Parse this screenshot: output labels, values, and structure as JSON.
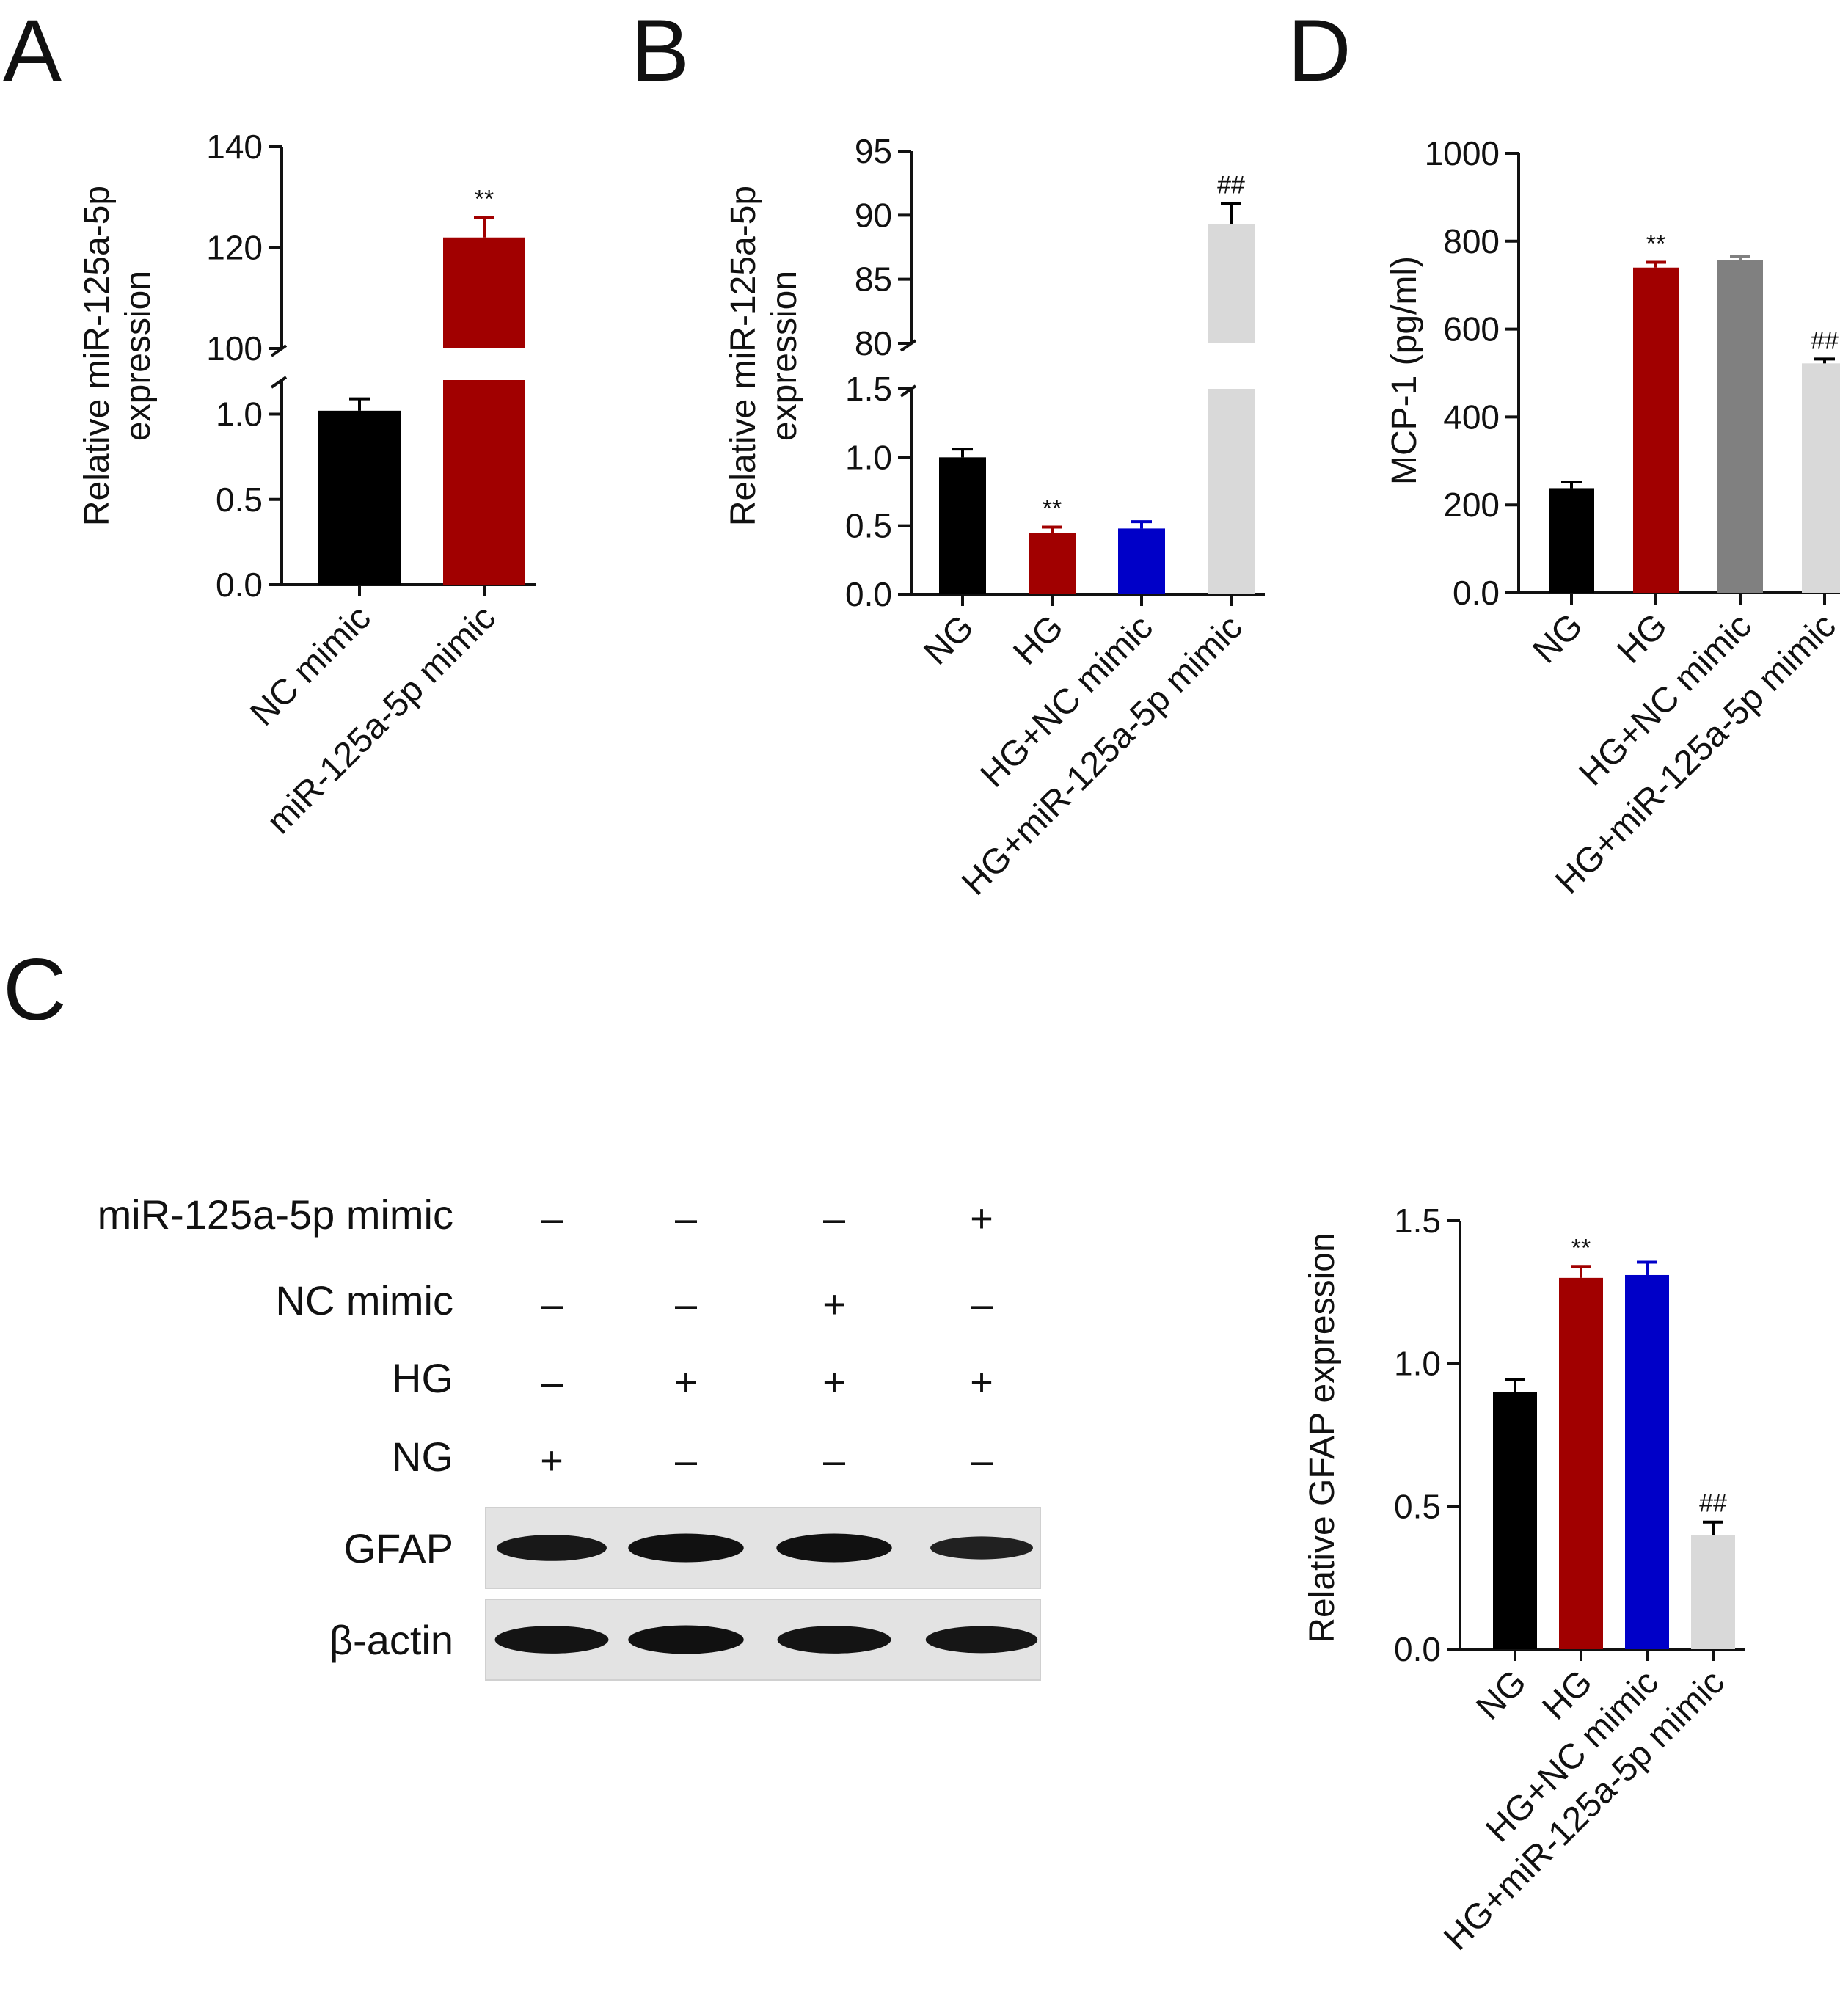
{
  "panels": {
    "A": "A",
    "B": "B",
    "C": "C",
    "D": "D"
  },
  "chart_data": [
    {
      "id": "A",
      "type": "bar",
      "categories": [
        "NC mimic",
        "miR-125a-5p mimic"
      ],
      "values": [
        1.02,
        122
      ],
      "errors": [
        0.07,
        4
      ],
      "colors": [
        "#000000",
        "#a10000"
      ],
      "ylabel_lines": [
        "Relative miR-125a-5p",
        "expression"
      ],
      "axis_break": {
        "lower": [
          0,
          1.2
        ],
        "upper": [
          100,
          140
        ]
      },
      "lower_ticks": [
        0.0,
        0.5,
        1.0
      ],
      "upper_ticks": [
        100,
        120,
        140
      ],
      "significance": [
        "",
        "**"
      ]
    },
    {
      "id": "B",
      "type": "bar",
      "categories": [
        "NG",
        "HG",
        "HG+NC mimic",
        "HG+miR-125a-5p mimic"
      ],
      "values": [
        1.0,
        0.45,
        0.48,
        89.3
      ],
      "errors": [
        0.06,
        0.04,
        0.05,
        1.6
      ],
      "colors": [
        "#000000",
        "#a10000",
        "#0000c8",
        "#d9d9d9"
      ],
      "ylabel_lines": [
        "Relative miR-125a-5p",
        "expression"
      ],
      "axis_break": {
        "lower": [
          0,
          1.5
        ],
        "upper": [
          80,
          95
        ]
      },
      "lower_ticks": [
        0.0,
        0.5,
        1.0,
        1.5
      ],
      "upper_ticks": [
        80,
        85,
        90,
        95
      ],
      "significance": [
        "",
        "**",
        "",
        "##"
      ]
    },
    {
      "id": "D",
      "type": "bar",
      "categories": [
        "NG",
        "HG",
        "HG+NC mimic",
        "HG+miR-125a-5p mimic"
      ],
      "values": [
        238,
        740,
        757,
        522
      ],
      "errors": [
        14,
        12,
        8,
        10
      ],
      "colors": [
        "#000000",
        "#a10000",
        "#808080",
        "#d9d9d9"
      ],
      "ylabel": "MCP-1  (pg/ml)",
      "ylim": [
        0,
        1000
      ],
      "ticks": [
        0,
        200,
        400,
        600,
        800,
        1000
      ],
      "significance": [
        "",
        "**",
        "",
        "##"
      ]
    },
    {
      "id": "C",
      "type": "bar",
      "categories": [
        "NG",
        "HG",
        "HG+NC mimic",
        "HG+miR-125a-5p mimic"
      ],
      "values": [
        0.9,
        1.3,
        1.31,
        0.4
      ],
      "errors": [
        0.045,
        0.04,
        0.045,
        0.045
      ],
      "colors": [
        "#000000",
        "#a10000",
        "#0000c8",
        "#d9d9d9"
      ],
      "ylabel": "Relative GFAP expression",
      "ylim": [
        0,
        1.5
      ],
      "ticks": [
        0.0,
        0.5,
        1.0,
        1.5
      ],
      "significance": [
        "",
        "**",
        "",
        "##"
      ]
    }
  ],
  "blot": {
    "rows": [
      {
        "label": "miR-125a-5p mimic",
        "signs": [
          "–",
          "–",
          "–",
          "+"
        ]
      },
      {
        "label": "NC mimic",
        "signs": [
          "–",
          "–",
          "+",
          "–"
        ]
      },
      {
        "label": "HG",
        "signs": [
          "–",
          "+",
          "+",
          "+"
        ]
      },
      {
        "label": "NG",
        "signs": [
          "+",
          "–",
          "–",
          "–"
        ]
      }
    ],
    "bands": [
      {
        "label": "GFAP",
        "intensity": [
          0.8,
          0.95,
          0.95,
          0.6
        ]
      },
      {
        "label": "β-actin",
        "intensity": [
          0.9,
          0.95,
          0.9,
          0.85
        ]
      }
    ]
  }
}
